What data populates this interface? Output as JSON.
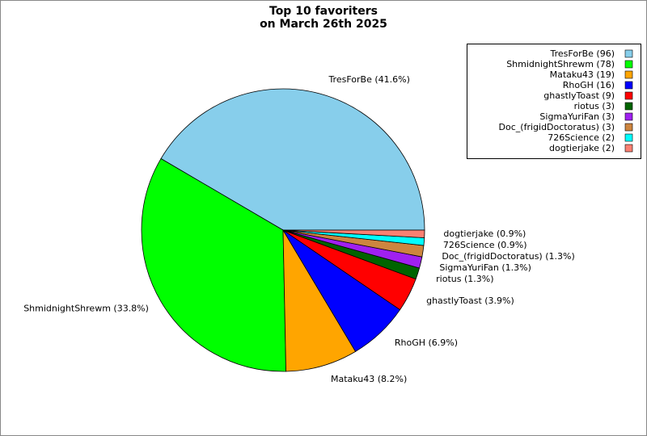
{
  "chart_data": {
    "type": "pie",
    "title": [
      "Top 10 favoriters",
      "on March 26th 2025"
    ],
    "labels": [
      "TresForBe (96)",
      "ShmidnightShrewm (78)",
      "Mataku43 (19)",
      "RhoGH (16)",
      "ghastlyToast (9)",
      "riotus (3)",
      "SigmaYuriFan (3)",
      "Doc_(frigidDoctoratus) (3)",
      "726Science (2)",
      "dogtierjake (2)"
    ],
    "values": [
      96,
      78,
      19,
      16,
      9,
      3,
      3,
      3,
      2,
      2
    ],
    "value_labels": [
      "TresForBe (41.6%)",
      "ShmidnightShrewm (33.8%)",
      "Mataku43 (8.2%)",
      "RhoGH (6.9%)",
      "ghastlyToast (3.9%)",
      "riotus (1.3%)",
      "SigmaYuriFan (1.3%)",
      "Doc_(frigidDoctoratus) (1.3%)",
      "726Science (0.9%)",
      "dogtierjake (0.9%)"
    ],
    "colors": [
      "#87ceeb",
      "#00ff00",
      "#ffa500",
      "#0000ff",
      "#ff0000",
      "#006400",
      "#a020f0",
      "#cd853f",
      "#00ffff",
      "#fa8072"
    ],
    "legend_position": "upper right"
  }
}
